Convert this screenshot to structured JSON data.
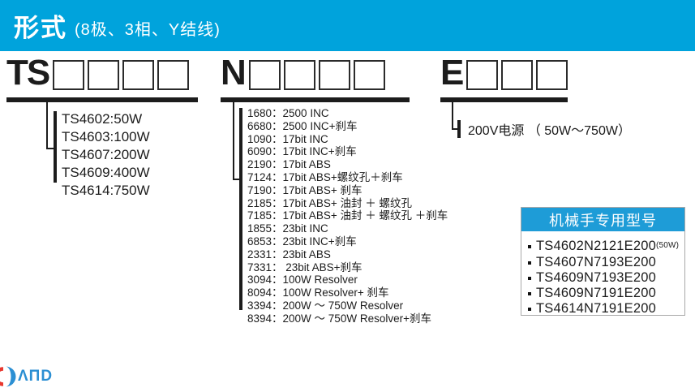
{
  "header": {
    "title": "形式",
    "subtitle": "(8极、3相、Y结线)",
    "bar_color": "#00a3dc"
  },
  "sections": {
    "ts": {
      "prefix": "TS",
      "box_count": 4,
      "items": [
        "TS4602:50W",
        "TS4603:100W",
        "TS4607:200W",
        "TS4609:400W",
        "TS4614:750W"
      ]
    },
    "n": {
      "prefix": "N",
      "box_count": 4,
      "items": [
        "1680：2500 INC",
        "6680：2500 INC+刹车",
        "1090：17bit INC",
        "6090：17bit INC+刹车",
        "2190：17bit ABS",
        "7124：17bit ABS+螺纹孔＋刹车",
        "7190：17bit ABS+ 刹车",
        "2185：17bit ABS+ 油封 ＋ 螺纹孔",
        "7185：17bit ABS+ 油封 ＋ 螺纹孔 ＋刹车",
        "1855：23bit INC",
        "6853：23bit INC+刹车",
        "2331：23bit ABS",
        "7331： 23bit ABS+刹车",
        "3094：100W Resolver",
        "8094：100W Resolver+ 刹车",
        "3394：200W ～ 750W Resolver",
        "8394：200W ～ 750W Resolver+刹车"
      ]
    },
    "e": {
      "prefix": "E",
      "box_count": 3,
      "note": "200V电源 （ 50W～750W）"
    }
  },
  "robot_panel": {
    "title": "机械手专用型号",
    "header_color": "#1e9cd7",
    "items": [
      {
        "model": "TS4602N2121E200",
        "suffix": "(50W)"
      },
      {
        "model": "TS4607N7193E200",
        "suffix": ""
      },
      {
        "model": "TS4609N7193E200",
        "suffix": ""
      },
      {
        "model": "TS4609N7191E200",
        "suffix": ""
      },
      {
        "model": "TS4614N7191E200",
        "suffix": ""
      }
    ]
  },
  "logo": {
    "text": "ΛПD",
    "icon": "split-circle-icon",
    "red": "#e8382f",
    "blue": "#2b8fd3"
  }
}
